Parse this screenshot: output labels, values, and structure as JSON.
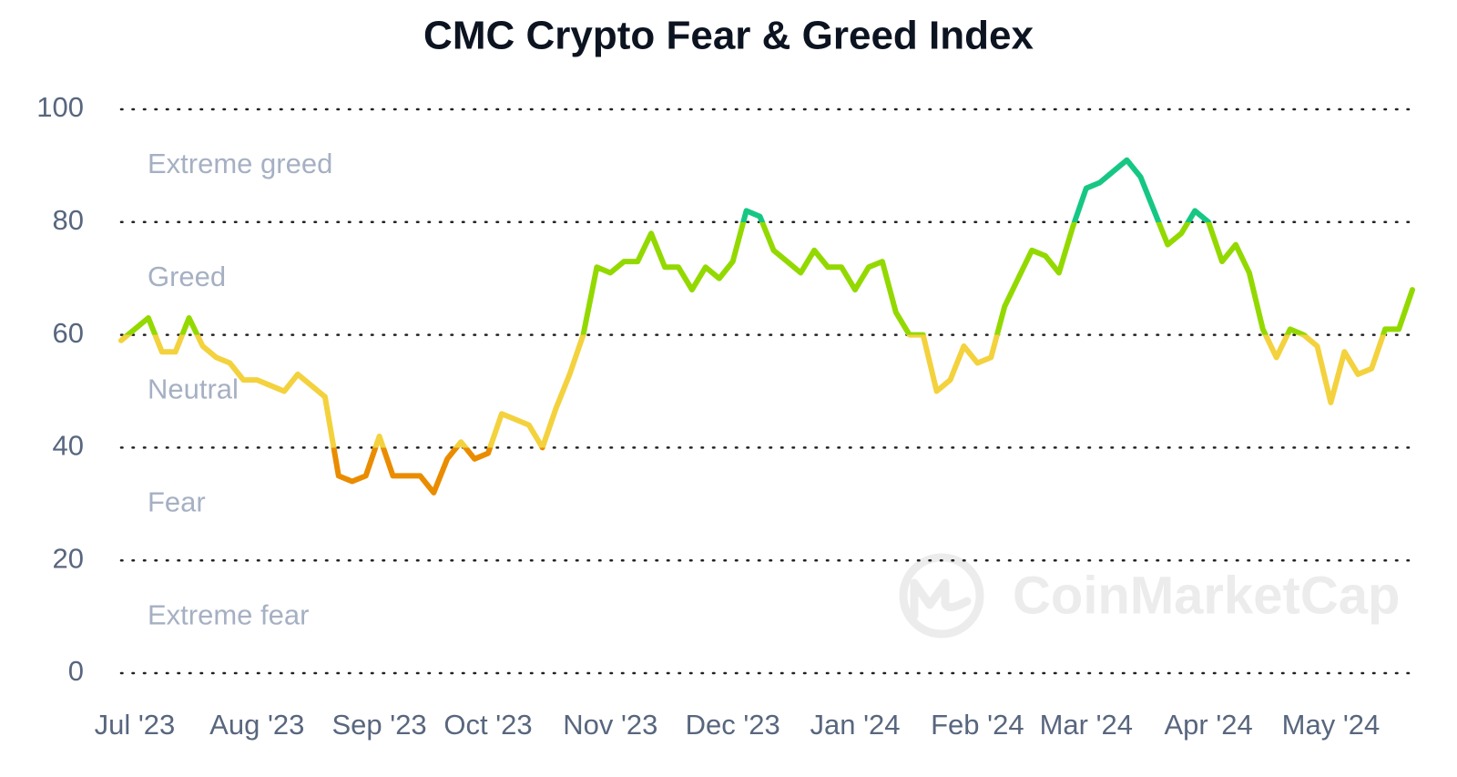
{
  "chart_data": {
    "type": "line",
    "title": "CMC Crypto Fear & Greed Index",
    "watermark": "CoinMarketCap",
    "categories": [
      null,
      "Jul '23",
      null,
      null,
      null,
      null,
      null,
      null,
      null,
      null,
      "Aug '23",
      null,
      null,
      null,
      null,
      null,
      null,
      null,
      null,
      "Sep '23",
      null,
      null,
      null,
      null,
      null,
      null,
      null,
      "Oct '23",
      null,
      null,
      null,
      null,
      null,
      null,
      null,
      null,
      "Nov '23",
      null,
      null,
      null,
      null,
      null,
      null,
      null,
      null,
      "Dec '23",
      null,
      null,
      null,
      null,
      null,
      null,
      null,
      null,
      "Jan '24",
      null,
      null,
      null,
      null,
      null,
      null,
      null,
      null,
      "Feb '24",
      null,
      null,
      null,
      null,
      null,
      null,
      null,
      "Mar '24",
      null,
      null,
      null,
      null,
      null,
      null,
      null,
      null,
      "Apr '24",
      null,
      null,
      null,
      null,
      null,
      null,
      null,
      null,
      "May '24",
      null,
      null,
      null,
      null,
      null,
      null
    ],
    "values": [
      59,
      61,
      63,
      57,
      57,
      63,
      58,
      56,
      55,
      52,
      52,
      51,
      50,
      53,
      51,
      49,
      35,
      34,
      35,
      42,
      35,
      35,
      35,
      32,
      38,
      41,
      38,
      39,
      46,
      45,
      44,
      40,
      47,
      53,
      60,
      72,
      71,
      73,
      73,
      78,
      72,
      72,
      68,
      72,
      70,
      73,
      82,
      81,
      75,
      73,
      71,
      75,
      72,
      72,
      68,
      72,
      73,
      64,
      60,
      60,
      50,
      52,
      58,
      55,
      56,
      65,
      70,
      75,
      74,
      71,
      79,
      86,
      87,
      89,
      91,
      88,
      82,
      76,
      78,
      82,
      80,
      73,
      76,
      71,
      61,
      56,
      61,
      60,
      58,
      48,
      57,
      53,
      54,
      61,
      61,
      68
    ],
    "bands": [
      {
        "label": "Extreme greed",
        "from": 80,
        "to": 100,
        "color": "#16c784"
      },
      {
        "label": "Greed",
        "from": 60,
        "to": 80,
        "color": "#93d900"
      },
      {
        "label": "Neutral",
        "from": 40,
        "to": 60,
        "color": "#f3d23e"
      },
      {
        "label": "Fear",
        "from": 20,
        "to": 40,
        "color": "#ea8c00"
      },
      {
        "label": "Extreme fear",
        "from": 0,
        "to": 20,
        "color": "#ea3943"
      }
    ],
    "ylim": [
      0,
      100
    ],
    "yticks": [
      0,
      20,
      40,
      60,
      80,
      100
    ],
    "grid": true
  }
}
